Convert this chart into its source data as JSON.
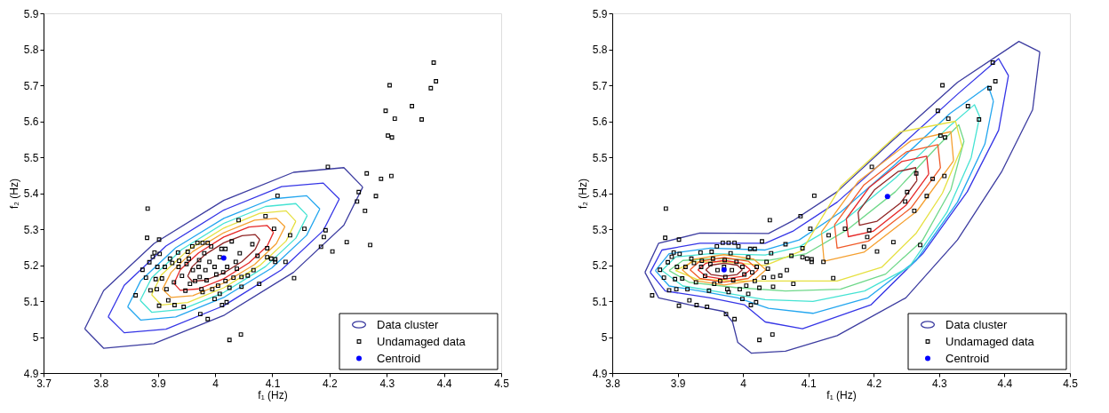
{
  "chart_data": [
    {
      "type": "scatter",
      "xlabel": "f₁ (Hz)",
      "ylabel": "f₂ (Hz)",
      "xlim": [
        3.7,
        4.5
      ],
      "ylim": [
        4.9,
        5.9
      ],
      "xticks": [
        3.7,
        3.8,
        3.9,
        4,
        4.1,
        4.2,
        4.3,
        4.4,
        4.5
      ],
      "yticks": [
        4.9,
        5,
        5.1,
        5.2,
        5.3,
        5.4,
        5.5,
        5.6,
        5.7,
        5.8,
        5.9
      ],
      "grid": false,
      "legend": "bottom right",
      "series": [
        {
          "name": "Data cluster",
          "type": "line",
          "color": "#3c3ca0",
          "x": [
            3.772,
            3.805,
            3.893,
            4.015,
            4.137,
            4.225,
            4.258
          ],
          "values": [
            5.023,
            5.129,
            5.26,
            5.38,
            5.458,
            5.471,
            5.417
          ]
        },
        {
          "type": "line",
          "color": "#3c3ca0",
          "x": [
            3.772,
            3.805,
            3.893,
            4.015,
            4.137,
            4.225,
            4.258
          ],
          "values": [
            5.023,
            4.969,
            4.982,
            5.06,
            5.18,
            5.311,
            5.417
          ]
        },
        {
          "type": "line",
          "color": "#3535e6",
          "x": [
            3.813,
            3.841,
            3.914,
            4.015,
            4.116,
            4.189,
            4.217
          ],
          "values": [
            5.056,
            5.144,
            5.253,
            5.353,
            5.418,
            5.428,
            5.384
          ]
        },
        {
          "type": "line",
          "color": "#3535e6",
          "x": [
            3.813,
            3.841,
            3.914,
            4.015,
            4.116,
            4.189,
            4.217
          ],
          "values": [
            5.056,
            5.012,
            5.022,
            5.087,
            5.187,
            5.296,
            5.384
          ]
        },
        {
          "type": "line",
          "color": "#23a6ef",
          "x": [
            3.847,
            3.87,
            3.931,
            4.015,
            4.099,
            4.16,
            4.183
          ],
          "values": [
            5.084,
            5.157,
            5.248,
            5.33,
            5.384,
            5.393,
            5.356
          ]
        },
        {
          "type": "line",
          "color": "#23a6ef",
          "x": [
            3.847,
            3.87,
            3.931,
            4.015,
            4.099,
            4.16,
            4.183
          ],
          "values": [
            5.084,
            5.047,
            5.056,
            5.11,
            5.192,
            5.283,
            5.356
          ]
        },
        {
          "type": "line",
          "color": "#45e3d3",
          "x": [
            3.869,
            3.889,
            3.942,
            4.015,
            4.088,
            4.141,
            4.161
          ],
          "values": [
            5.102,
            5.165,
            5.244,
            5.316,
            5.363,
            5.371,
            5.338
          ]
        },
        {
          "type": "line",
          "color": "#45e3d3",
          "x": [
            3.869,
            3.889,
            3.942,
            4.015,
            4.088,
            4.141,
            4.161
          ],
          "values": [
            5.102,
            5.069,
            5.077,
            5.124,
            5.196,
            5.275,
            5.338
          ]
        },
        {
          "type": "line",
          "color": "#e6e040",
          "x": [
            3.889,
            3.906,
            3.952,
            4.015,
            4.078,
            4.124,
            4.141
          ],
          "values": [
            5.118,
            5.173,
            5.241,
            5.303,
            5.344,
            5.351,
            5.322
          ]
        },
        {
          "type": "line",
          "color": "#e6e040",
          "x": [
            3.889,
            3.906,
            3.952,
            4.015,
            4.078,
            4.124,
            4.141
          ],
          "values": [
            5.118,
            5.089,
            5.096,
            5.137,
            5.199,
            5.267,
            5.322
          ]
        },
        {
          "type": "line",
          "color": "#f5a030",
          "x": [
            3.908,
            3.923,
            3.961,
            4.015,
            4.069,
            4.107,
            4.122
          ],
          "values": [
            5.133,
            5.18,
            5.238,
            5.29,
            5.325,
            5.33,
            5.307
          ]
        },
        {
          "type": "line",
          "color": "#f5a030",
          "x": [
            3.908,
            3.923,
            3.961,
            4.015,
            4.069,
            4.107,
            4.122
          ],
          "values": [
            5.133,
            5.11,
            5.115,
            5.15,
            5.202,
            5.26,
            5.307
          ]
        },
        {
          "type": "line",
          "color": "#e62828",
          "x": [
            3.928,
            3.939,
            3.971,
            4.015,
            4.059,
            4.091,
            4.102
          ],
          "values": [
            5.149,
            5.187,
            5.234,
            5.278,
            5.306,
            5.31,
            5.291
          ]
        },
        {
          "type": "line",
          "color": "#e62828",
          "x": [
            3.928,
            3.939,
            3.971,
            4.015,
            4.059,
            4.091,
            4.102
          ],
          "values": [
            5.149,
            5.13,
            5.134,
            5.162,
            5.206,
            5.253,
            5.291
          ]
        },
        {
          "type": "line",
          "color": "#902525",
          "x": [
            3.952,
            3.96,
            3.983,
            4.015,
            4.047,
            4.07,
            4.078
          ],
          "values": [
            5.169,
            5.196,
            5.23,
            5.262,
            5.282,
            5.285,
            5.271
          ]
        },
        {
          "type": "line",
          "color": "#902525",
          "x": [
            3.952,
            3.96,
            3.983,
            4.015,
            4.047,
            4.07,
            4.078
          ],
          "values": [
            5.169,
            5.155,
            5.158,
            5.178,
            5.21,
            5.244,
            5.271
          ]
        },
        {
          "name": "Undamaged data",
          "type": "scatter",
          "marker": "square",
          "color": "#000000",
          "x": [
            4.382,
            4.386,
            4.377,
            4.305,
            4.344,
            4.298,
            4.314,
            4.361,
            4.302,
            4.309,
            4.197,
            4.265,
            4.29,
            4.308,
            4.251,
            4.281,
            4.248,
            4.262,
            4.109,
            3.882,
            4.088,
            4.041,
            4.103,
            4.156,
            4.193,
            4.131,
            4.19,
            3.881,
            3.902,
            4.23,
            4.271,
            4.065,
            4.185,
            4.205,
            4.091,
            4.074,
            4.091,
            4.098,
            4.105,
            4.105,
            4.123,
            4.138,
            4.077,
            4.067,
            4.057,
            4.046,
            4.046,
            4.025,
            4.045,
            3.987,
            3.974,
            4.012,
            4.02,
            3.999,
            3.945,
            3.929,
            3.902,
            3.861,
            3.873,
            3.879,
            3.885,
            3.887,
            3.891,
            3.894,
            3.899,
            3.896,
            3.898,
            3.903,
            3.907,
            3.912,
            3.915,
            3.918,
            3.921,
            3.925,
            3.928,
            3.935,
            3.937,
            3.942,
            3.948,
            3.95,
            3.952,
            3.96,
            3.961,
            3.969,
            3.971,
            3.973,
            3.976,
            3.978,
            3.981,
            3.983,
            3.985,
            3.99,
            3.993,
            3.995,
            3.999,
            4.002,
            4.005,
            4.008,
            4.011,
            4.014,
            4.018,
            4.021,
            4.025,
            4.029,
            4.032,
            4.036,
            4.038,
            4.043,
            3.965,
            3.956,
            3.972,
            3.954,
            3.936,
            3.987,
            4.018,
            3.978,
            4.008
          ],
          "values": [
            5.763,
            5.711,
            5.692,
            5.7,
            5.642,
            5.629,
            5.607,
            5.605,
            5.56,
            5.555,
            5.473,
            5.455,
            5.44,
            5.448,
            5.403,
            5.392,
            5.377,
            5.351,
            5.393,
            5.357,
            5.336,
            5.325,
            5.301,
            5.301,
            5.297,
            5.283,
            5.278,
            5.276,
            5.271,
            5.264,
            5.256,
            5.258,
            5.251,
            5.238,
            5.247,
            5.226,
            5.222,
            5.218,
            5.216,
            5.209,
            5.209,
            5.164,
            5.148,
            5.186,
            5.171,
            5.167,
            5.14,
            4.992,
            5.007,
            5.05,
            5.064,
            5.089,
            5.097,
            5.106,
            5.084,
            5.089,
            5.087,
            5.116,
            5.187,
            5.165,
            5.208,
            5.13,
            5.223,
            5.235,
            5.195,
            5.161,
            5.133,
            5.231,
            5.163,
            5.195,
            5.133,
            5.102,
            5.218,
            5.206,
            5.152,
            5.235,
            5.212,
            5.17,
            5.129,
            5.203,
            5.237,
            5.252,
            5.186,
            5.262,
            5.195,
            5.167,
            5.133,
            5.262,
            5.233,
            5.186,
            5.158,
            5.209,
            5.252,
            5.133,
            5.195,
            5.174,
            5.143,
            5.222,
            5.245,
            5.18,
            5.156,
            5.195,
            5.137,
            5.266,
            5.165,
            5.209,
            5.19,
            5.233,
            5.156,
            5.148,
            5.214,
            5.218,
            5.195,
            5.262,
            5.245,
            5.125,
            5.12
          ]
        },
        {
          "name": "Centroid",
          "type": "scatter",
          "marker": "circle",
          "color": "#0000ff",
          "x": [
            4.015
          ],
          "values": [
            5.22
          ]
        }
      ]
    },
    {
      "type": "scatter",
      "xlabel": "f₁ (Hz)",
      "ylabel": "f₂ (Hz)",
      "xlim": [
        3.8,
        4.5
      ],
      "ylim": [
        4.9,
        5.9
      ],
      "xticks": [
        3.8,
        3.9,
        4,
        4.1,
        4.2,
        4.3,
        4.4,
        4.5
      ],
      "yticks": [
        4.9,
        5,
        5.1,
        5.2,
        5.3,
        5.4,
        5.5,
        5.6,
        5.7,
        5.8,
        5.9
      ],
      "grid": false,
      "legend": "bottom right",
      "series": [
        {
          "name": "Data cluster",
          "type": "line",
          "color": "#3c3ca0",
          "x": [
            3.85,
            3.871,
            3.934,
            4.039,
            4.076,
            4.144,
            4.223,
            4.328,
            4.422,
            4.454
          ],
          "values": [
            5.18,
            5.261,
            5.289,
            5.288,
            5.323,
            5.404,
            5.537,
            5.708,
            5.822,
            5.793
          ]
        },
        {
          "type": "line",
          "color": "#3c3ca0",
          "x": [
            3.85,
            3.871,
            3.918,
            3.971,
            3.984,
            3.992,
            4.013,
            4.065,
            4.144,
            4.249,
            4.328,
            4.396,
            4.443,
            4.454
          ],
          "values": [
            5.18,
            5.109,
            5.09,
            5.071,
            5.042,
            4.985,
            4.955,
            4.961,
            5.004,
            5.109,
            5.27,
            5.461,
            5.632,
            5.793
          ]
        },
        {
          "type": "line",
          "color": "#3535e6",
          "x": [
            3.858,
            3.876,
            3.934,
            4.034,
            4.076,
            4.144,
            4.233,
            4.328,
            4.391,
            4.406
          ],
          "values": [
            5.18,
            5.242,
            5.261,
            5.261,
            5.294,
            5.375,
            5.518,
            5.675,
            5.774,
            5.727
          ]
        },
        {
          "type": "line",
          "color": "#3535e6",
          "x": [
            3.858,
            3.881,
            3.95,
            4.002,
            4.034,
            4.091,
            4.196,
            4.275,
            4.343,
            4.391,
            4.406
          ],
          "values": [
            5.18,
            5.128,
            5.109,
            5.09,
            5.042,
            5.023,
            5.09,
            5.232,
            5.404,
            5.575,
            5.727
          ]
        },
        {
          "type": "line",
          "color": "#23a6ef",
          "x": [
            3.866,
            3.887,
            3.95,
            4.034,
            4.086,
            4.149,
            4.233,
            4.317,
            4.375,
            4.383
          ],
          "values": [
            5.185,
            5.232,
            5.247,
            5.242,
            5.27,
            5.347,
            5.48,
            5.622,
            5.698,
            5.656
          ]
        },
        {
          "type": "line",
          "color": "#23a6ef",
          "x": [
            3.866,
            3.887,
            3.934,
            3.992,
            4.039,
            4.107,
            4.191,
            4.265,
            4.328,
            4.37,
            4.383
          ],
          "values": [
            5.185,
            5.142,
            5.128,
            5.109,
            5.08,
            5.066,
            5.109,
            5.213,
            5.375,
            5.537,
            5.656
          ]
        },
        {
          "type": "line",
          "color": "#45e3d3",
          "x": [
            3.876,
            3.897,
            3.95,
            4.034,
            4.086,
            4.154,
            4.233,
            4.312,
            4.354,
            4.362
          ],
          "values": [
            5.185,
            5.223,
            5.232,
            5.228,
            5.251,
            5.323,
            5.442,
            5.58,
            5.646,
            5.613
          ]
        },
        {
          "type": "line",
          "color": "#45e3d3",
          "x": [
            3.876,
            3.908,
            3.971,
            4.034,
            4.107,
            4.186,
            4.254,
            4.312,
            4.349,
            4.362
          ],
          "values": [
            5.185,
            5.142,
            5.123,
            5.104,
            5.099,
            5.128,
            5.194,
            5.347,
            5.499,
            5.613
          ]
        },
        {
          "type": "line",
          "color": "#6fd88a",
          "x": [
            3.887,
            3.908,
            3.96,
            4.039,
            4.097,
            4.16,
            4.233,
            4.296,
            4.33,
            4.338
          ],
          "values": [
            5.185,
            5.213,
            5.218,
            5.213,
            5.232,
            5.299,
            5.404,
            5.527,
            5.59,
            5.545
          ]
        },
        {
          "type": "line",
          "color": "#6fd88a",
          "x": [
            3.887,
            3.918,
            3.992,
            4.065,
            4.149,
            4.218,
            4.275,
            4.318,
            4.338
          ],
          "values": [
            5.185,
            5.152,
            5.137,
            5.128,
            5.133,
            5.175,
            5.27,
            5.41,
            5.545
          ]
        },
        {
          "type": "line",
          "color": "#e6e040",
          "x": [
            3.897,
            3.923,
            3.971,
            4.034,
            4.09,
            4.15,
            4.24,
            4.325,
            4.335
          ],
          "values": [
            5.185,
            5.209,
            5.209,
            5.199,
            5.24,
            5.42,
            5.57,
            5.6,
            5.53
          ]
        },
        {
          "type": "line",
          "color": "#e6e040",
          "x": [
            3.897,
            3.929,
            3.992,
            4.065,
            4.144,
            4.212,
            4.265,
            4.305,
            4.335
          ],
          "values": [
            5.185,
            5.161,
            5.156,
            5.156,
            5.156,
            5.194,
            5.289,
            5.4,
            5.53
          ]
        },
        {
          "type": "line",
          "color": "#f5a030",
          "x": [
            3.907,
            3.926,
            3.971,
            4.016,
            4.035,
            4.08,
            4.12,
            4.176,
            4.257,
            4.318,
            4.322
          ],
          "values": [
            5.187,
            5.217,
            5.229,
            5.217,
            5.187,
            null,
            5.292,
            5.432,
            5.546,
            5.571,
            5.49
          ]
        },
        {
          "type": "line",
          "color": "#f5a030",
          "x": [
            3.907,
            3.926,
            3.971,
            4.016,
            4.035,
            4.08,
            4.12,
            4.124,
            4.185,
            4.266,
            4.322
          ],
          "values": [
            5.187,
            5.157,
            5.145,
            5.157,
            5.187,
            null,
            5.292,
            5.211,
            5.236,
            5.35,
            5.49
          ]
        },
        {
          "type": "line",
          "color": "#f05a28",
          "x": [
            3.919,
            3.934,
            3.971,
            4.008,
            4.023,
            4.08,
            4.14,
            4.185,
            4.25,
            4.298,
            4.302
          ],
          "values": [
            5.187,
            5.211,
            5.221,
            5.211,
            5.187,
            null,
            5.312,
            5.423,
            5.515,
            5.535,
            5.47
          ]
        },
        {
          "type": "line",
          "color": "#f05a28",
          "x": [
            3.919,
            3.934,
            3.971,
            4.008,
            4.023,
            4.08,
            4.14,
            4.144,
            4.192,
            4.257,
            4.302
          ],
          "values": [
            5.187,
            5.163,
            5.153,
            5.163,
            5.187,
            null,
            5.312,
            5.247,
            5.267,
            5.359,
            5.47
          ]
        },
        {
          "type": "line",
          "color": "#e62828",
          "x": [
            3.931,
            3.943,
            3.971,
            3.999,
            4.011,
            4.08,
            4.158,
            4.193,
            4.243,
            4.281,
            4.284
          ],
          "values": [
            5.187,
            5.205,
            5.213,
            5.205,
            5.187,
            null,
            5.329,
            5.416,
            5.488,
            5.503,
            5.453
          ]
        },
        {
          "type": "line",
          "color": "#e62828",
          "x": [
            3.931,
            3.943,
            3.971,
            3.999,
            4.011,
            4.08,
            4.158,
            4.161,
            4.199,
            4.249,
            4.284
          ],
          "values": [
            5.187,
            5.169,
            5.161,
            5.169,
            5.187,
            null,
            5.329,
            5.279,
            5.294,
            5.366,
            5.453
          ]
        },
        {
          "type": "line",
          "color": "#902525",
          "x": [
            3.943,
            3.951,
            3.971,
            3.991,
            3.999,
            4.08,
            4.176,
            4.201,
            4.237,
            4.264,
            4.266
          ],
          "values": [
            5.187,
            5.2,
            5.205,
            5.2,
            5.187,
            null,
            5.347,
            5.409,
            5.46,
            5.471,
            5.435
          ]
        },
        {
          "type": "line",
          "color": "#902525",
          "x": [
            3.943,
            3.951,
            3.971,
            3.991,
            3.999,
            4.08,
            4.176,
            4.178,
            4.205,
            4.241,
            4.266
          ],
          "values": [
            5.187,
            5.174,
            5.169,
            5.174,
            5.187,
            null,
            5.347,
            5.311,
            5.322,
            5.373,
            5.435
          ]
        },
        {
          "name": "Undamaged data",
          "type": "scatter",
          "marker": "square",
          "color": "#000000",
          "x": [
            4.382,
            4.386,
            4.377,
            4.305,
            4.344,
            4.298,
            4.314,
            4.361,
            4.302,
            4.309,
            4.197,
            4.265,
            4.29,
            4.308,
            4.251,
            4.281,
            4.248,
            4.262,
            4.109,
            3.882,
            4.088,
            4.041,
            4.103,
            4.156,
            4.193,
            4.131,
            4.19,
            3.881,
            3.902,
            4.23,
            4.271,
            4.065,
            4.185,
            4.205,
            4.091,
            4.074,
            4.091,
            4.098,
            4.105,
            4.105,
            4.123,
            4.138,
            4.077,
            4.067,
            4.057,
            4.046,
            4.046,
            4.025,
            4.045,
            3.987,
            3.974,
            4.012,
            4.02,
            3.999,
            3.945,
            3.929,
            3.902,
            3.861,
            3.873,
            3.879,
            3.885,
            3.887,
            3.891,
            3.894,
            3.899,
            3.896,
            3.898,
            3.903,
            3.907,
            3.912,
            3.915,
            3.918,
            3.921,
            3.925,
            3.928,
            3.935,
            3.937,
            3.942,
            3.948,
            3.95,
            3.952,
            3.96,
            3.961,
            3.969,
            3.971,
            3.973,
            3.976,
            3.978,
            3.981,
            3.983,
            3.985,
            3.99,
            3.993,
            3.995,
            3.999,
            4.002,
            4.005,
            4.008,
            4.011,
            4.014,
            4.018,
            4.021,
            4.025,
            4.029,
            4.032,
            4.036,
            4.038,
            4.043,
            3.965,
            3.956,
            3.972,
            3.954,
            3.936,
            3.987,
            4.018,
            3.978,
            4.008
          ],
          "values": [
            5.763,
            5.711,
            5.692,
            5.7,
            5.642,
            5.629,
            5.607,
            5.605,
            5.56,
            5.555,
            5.473,
            5.455,
            5.44,
            5.448,
            5.403,
            5.392,
            5.377,
            5.351,
            5.393,
            5.357,
            5.336,
            5.325,
            5.301,
            5.301,
            5.297,
            5.283,
            5.278,
            5.276,
            5.271,
            5.264,
            5.256,
            5.258,
            5.251,
            5.238,
            5.247,
            5.226,
            5.222,
            5.218,
            5.216,
            5.209,
            5.209,
            5.164,
            5.148,
            5.186,
            5.171,
            5.167,
            5.14,
            4.992,
            5.007,
            5.05,
            5.064,
            5.089,
            5.097,
            5.106,
            5.084,
            5.089,
            5.087,
            5.116,
            5.187,
            5.165,
            5.208,
            5.13,
            5.223,
            5.235,
            5.195,
            5.161,
            5.133,
            5.231,
            5.163,
            5.195,
            5.133,
            5.102,
            5.218,
            5.206,
            5.152,
            5.235,
            5.212,
            5.17,
            5.129,
            5.203,
            5.237,
            5.252,
            5.186,
            5.262,
            5.195,
            5.167,
            5.133,
            5.262,
            5.233,
            5.186,
            5.158,
            5.209,
            5.252,
            5.133,
            5.195,
            5.174,
            5.143,
            5.222,
            5.245,
            5.18,
            5.156,
            5.195,
            5.137,
            5.266,
            5.165,
            5.209,
            5.19,
            5.233,
            5.156,
            5.148,
            5.214,
            5.218,
            5.195,
            5.262,
            5.245,
            5.125,
            5.12
          ]
        },
        {
          "name": "Centroid",
          "type": "scatter",
          "marker": "circle",
          "color": "#0000ff",
          "x": [
            3.971,
            4.221
          ],
          "values": [
            5.187,
            5.391
          ]
        }
      ]
    }
  ]
}
